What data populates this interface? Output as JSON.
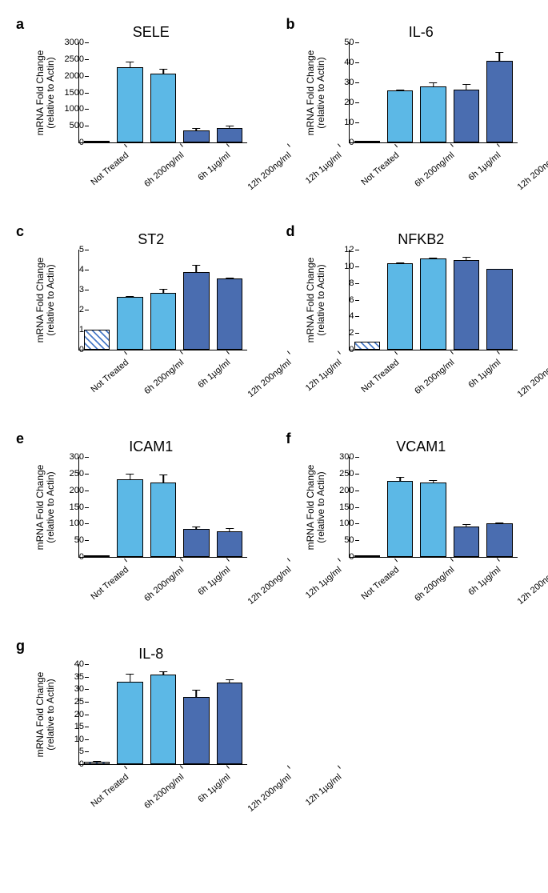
{
  "colors": {
    "not_treated": "#ffffff",
    "light_blue": "#5cb8e6",
    "dark_blue": "#4a6db0",
    "border": "#000000",
    "hatch": "#4a7bc8"
  },
  "y_axis_label": "mRNA Fold Change\n(relative to Actin)",
  "categories": [
    "Not Treated",
    "6h 200ng/ml",
    "6h 1µg/ml",
    "12h 200ng/ml",
    "12h 1µg/ml"
  ],
  "bar_styles": [
    "hatched",
    "light",
    "light",
    "dark",
    "dark"
  ],
  "panels": [
    {
      "letter": "a",
      "title": "SELE",
      "ymax": 3000,
      "ytick_step": 500,
      "values": [
        5,
        2250,
        2060,
        370,
        430
      ],
      "errors": [
        0,
        200,
        180,
        80,
        90
      ]
    },
    {
      "letter": "b",
      "title": "IL-6",
      "ymax": 50,
      "ytick_step": 10,
      "values": [
        1,
        26,
        28,
        26.5,
        41
      ],
      "errors": [
        0,
        1,
        2.5,
        3,
        4.5
      ]
    },
    {
      "letter": "c",
      "title": "ST2",
      "ymax": 5,
      "ytick_step": 1,
      "values": [
        1,
        2.65,
        2.85,
        3.9,
        3.55
      ],
      "errors": [
        0,
        0.08,
        0.25,
        0.4,
        0.08
      ]
    },
    {
      "letter": "d",
      "title": "NFKB2",
      "ymax": 12,
      "ytick_step": 2,
      "values": [
        1,
        10.4,
        10.9,
        10.8,
        9.7
      ],
      "errors": [
        0,
        0.2,
        0.25,
        0.4,
        0.1
      ]
    },
    {
      "letter": "e",
      "title": "ICAM1",
      "ymax": 300,
      "ytick_step": 50,
      "values": [
        1,
        233,
        224,
        83,
        78
      ],
      "errors": [
        0,
        18,
        25,
        10,
        10
      ]
    },
    {
      "letter": "f",
      "title": "VCAM1",
      "ymax": 300,
      "ytick_step": 50,
      "values": [
        1,
        228,
        224,
        92,
        100
      ],
      "errors": [
        0,
        14,
        10,
        9,
        5
      ]
    },
    {
      "letter": "g",
      "title": "IL-8",
      "ymax": 40,
      "ytick_step": 5,
      "values": [
        1,
        33,
        36,
        27,
        32.5
      ],
      "errors": [
        0.5,
        3.5,
        1.5,
        3,
        1.8
      ]
    }
  ]
}
